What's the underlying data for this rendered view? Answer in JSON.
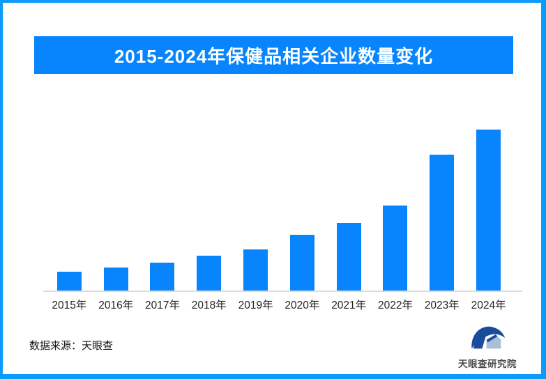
{
  "page": {
    "border_color": "#0B9BFA",
    "background_color": "#FFFFFF"
  },
  "header": {
    "title": "2015-2024年保健品相关企业数量变化",
    "banner_color": "#0885FC",
    "title_color": "#FFFFFF"
  },
  "chart_data": {
    "type": "bar",
    "title": "2015-2024年保健品相关企业数量变化",
    "categories": [
      "2015年",
      "2016年",
      "2017年",
      "2018年",
      "2019年",
      "2020年",
      "2021年",
      "2022年",
      "2023年",
      "2024年"
    ],
    "values": [
      11.7,
      14.3,
      17.3,
      21.6,
      25.5,
      34.6,
      42.0,
      52.8,
      84.4,
      100
    ],
    "note": "No y-axis or data labels shown in chart; values are relative bar heights estimated from pixels, indexed to 2024 = 100",
    "xlabel": "",
    "ylabel": "",
    "ylim": [
      0,
      100
    ],
    "grid": false,
    "legend": false,
    "bar_color": "#0885FC",
    "axis_line_color": "#DCDCDC",
    "tick_label_color": "#262626"
  },
  "footer": {
    "source_label": "数据来源：天眼查",
    "logo_text": "天眼查研究院",
    "logo_navy": "#1D4B9C",
    "logo_light": "#A9BFD8"
  }
}
